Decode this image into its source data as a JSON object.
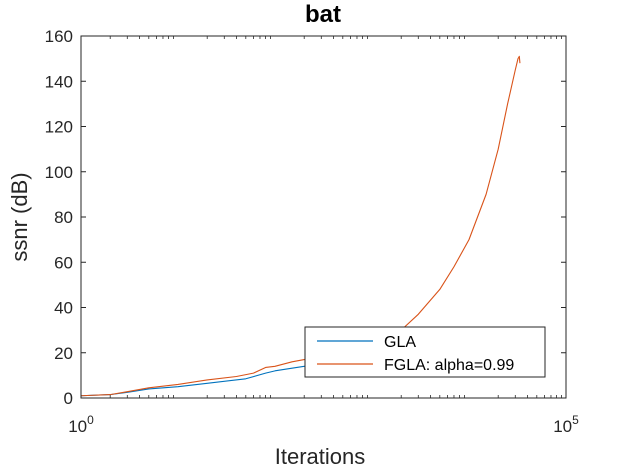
{
  "chart_data": {
    "type": "line",
    "title": "bat",
    "xlabel": "Iterations",
    "ylabel": "ssnr (dB)",
    "xscale": "log",
    "xlim": [
      1,
      100000
    ],
    "ylim": [
      0,
      160
    ],
    "x_ticks": [
      {
        "base": "10",
        "exp": "0",
        "value": 1
      },
      {
        "base": "10",
        "exp": "5",
        "value": 100000
      }
    ],
    "y_ticks": [
      0,
      20,
      40,
      60,
      80,
      100,
      120,
      140,
      160
    ],
    "grid": false,
    "legend_position": "bottom-right",
    "series": [
      {
        "name": "GLA",
        "color": "#0072BD",
        "points": [
          [
            1,
            1
          ],
          [
            2,
            1.5
          ],
          [
            3,
            2.5
          ],
          [
            5,
            4
          ],
          [
            10,
            5
          ],
          [
            20,
            6.5
          ],
          [
            50,
            8.5
          ],
          [
            80,
            11
          ],
          [
            100,
            12
          ],
          [
            200,
            14
          ],
          [
            300,
            16
          ],
          [
            500,
            18
          ],
          [
            1000,
            21
          ],
          [
            2000,
            25
          ],
          [
            3000,
            28
          ]
        ]
      },
      {
        "name": "FGLA: alpha=0.99",
        "color": "#D95319",
        "points": [
          [
            1,
            1
          ],
          [
            2,
            1.5
          ],
          [
            3,
            2.8
          ],
          [
            5,
            4.5
          ],
          [
            10,
            6
          ],
          [
            20,
            8
          ],
          [
            40,
            9.5
          ],
          [
            60,
            11
          ],
          [
            80,
            13.5
          ],
          [
            100,
            14
          ],
          [
            150,
            16
          ],
          [
            200,
            17
          ],
          [
            300,
            18.5
          ],
          [
            500,
            20
          ],
          [
            700,
            22
          ],
          [
            1000,
            24
          ],
          [
            2000,
            30
          ],
          [
            3000,
            37
          ],
          [
            5000,
            48
          ],
          [
            7000,
            58
          ],
          [
            10000,
            70
          ],
          [
            15000,
            90
          ],
          [
            20000,
            110
          ],
          [
            25000,
            130
          ],
          [
            30000,
            145
          ],
          [
            32000,
            150
          ],
          [
            33000,
            151
          ],
          [
            33500,
            148
          ]
        ]
      }
    ]
  }
}
